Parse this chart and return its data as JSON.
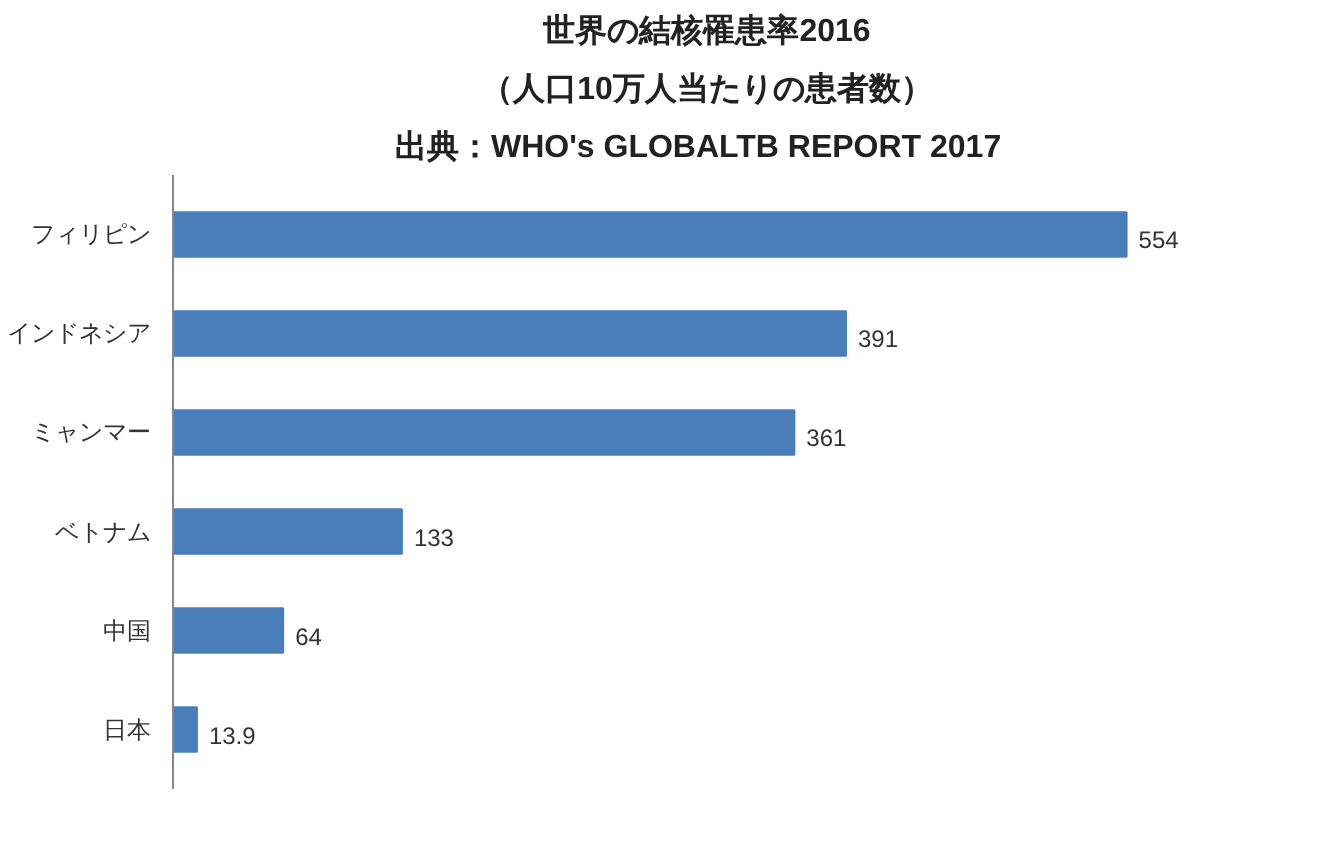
{
  "chart_data": {
    "type": "bar",
    "orientation": "horizontal",
    "title": "世界の結核罹患率2016",
    "subtitle": "（人口10万人当たりの患者数）",
    "annotations": [
      "出典：WHO's  GLOBALTB REPORT  2017"
    ],
    "categories": [
      "フィリピン",
      "インドネシア",
      "ミャンマー",
      "ベトナム",
      "中国",
      "日本"
    ],
    "values": [
      554,
      391,
      361,
      133,
      64,
      13.9
    ],
    "color": "#4a7ebb",
    "data_labels": true
  }
}
